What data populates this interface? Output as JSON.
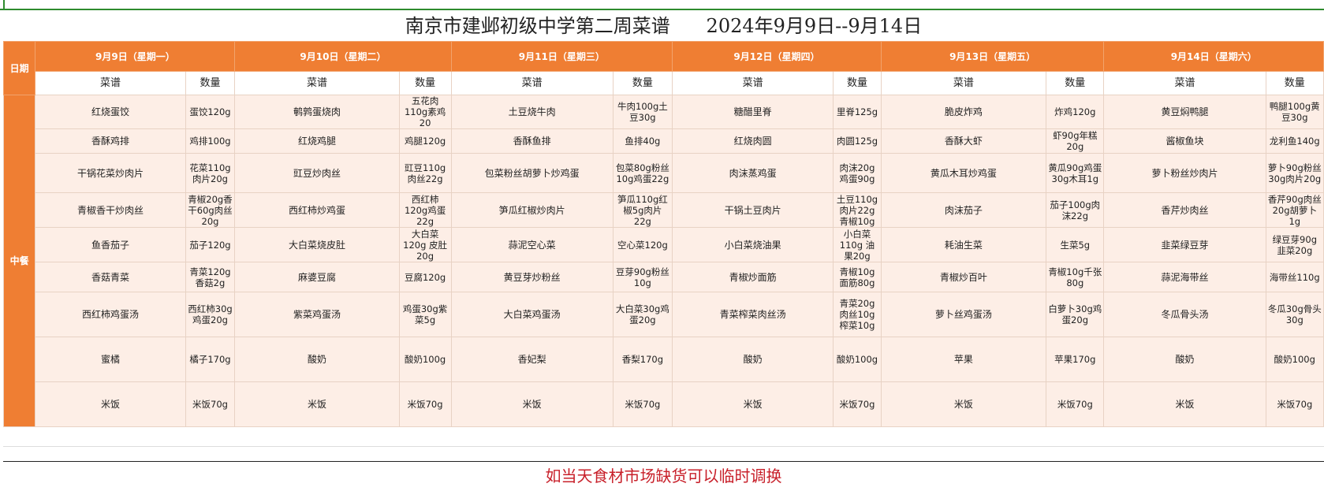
{
  "title": "南京市建邺初级中学第二周菜谱      2024年9月9日--9月14日",
  "row_label_date": "日期",
  "row_label_lunch": "中餐",
  "col_dish": "菜谱",
  "col_qty": "数量",
  "days": [
    "9月9日（星期一）",
    "9月10日（星期二）",
    "9月11日（星期三）",
    "9月12日（星期四）",
    "9月13日（星期五）",
    "9月14日（星期六）"
  ],
  "rows": [
    [
      [
        "红烧蛋饺",
        "蛋饺120g"
      ],
      [
        "鹌鹑蛋烧肉",
        "五花肉110g素鸡20"
      ],
      [
        "土豆烧牛肉",
        "牛肉100g土豆30g"
      ],
      [
        "糖醋里脊",
        "里脊125g"
      ],
      [
        "脆皮炸鸡",
        "炸鸡120g"
      ],
      [
        "黄豆焖鸭腿",
        "鸭腿100g黄豆30g"
      ]
    ],
    [
      [
        "香酥鸡排",
        "鸡排100g"
      ],
      [
        "红烧鸡腿",
        "鸡腿120g"
      ],
      [
        "香酥鱼排",
        "鱼排40g"
      ],
      [
        "红烧肉圆",
        "肉圆125g"
      ],
      [
        "香酥大虾",
        "虾90g年糕20g"
      ],
      [
        "酱椒鱼块",
        "龙利鱼140g"
      ]
    ],
    [
      [
        "干锅花菜炒肉片",
        "花菜110g肉片20g"
      ],
      [
        "豇豆炒肉丝",
        "豇豆110g肉丝22g"
      ],
      [
        "包菜粉丝胡萝卜炒鸡蛋",
        "包菜80g粉丝10g鸡蛋22g"
      ],
      [
        "肉沫蒸鸡蛋",
        "肉沫20g鸡蛋90g"
      ],
      [
        "黄瓜木耳炒鸡蛋",
        "黄瓜90g鸡蛋30g木耳1g"
      ],
      [
        "萝卜粉丝炒肉片",
        "萝卜90g粉丝30g肉片20g"
      ]
    ],
    [
      [
        "青椒香干炒肉丝",
        "青椒20g香干60g肉丝20g"
      ],
      [
        "西红柿炒鸡蛋",
        "西红柿120g鸡蛋22g"
      ],
      [
        "笋瓜红椒炒肉片",
        "笋瓜110g红椒5g肉片22g"
      ],
      [
        "干锅土豆肉片",
        "土豆110g肉片22g青椒10g"
      ],
      [
        "肉沫茄子",
        "茄子100g肉沫22g"
      ],
      [
        "香芹炒肉丝",
        "香芹90g肉丝20g胡萝卜1g"
      ]
    ],
    [
      [
        "鱼香茄子",
        "茄子120g"
      ],
      [
        "大白菜烧皮肚",
        "大白菜120g  皮肚20g"
      ],
      [
        "蒜泥空心菜",
        "空心菜120g"
      ],
      [
        "小白菜烧油果",
        "小白菜110g  油果20g"
      ],
      [
        "耗油生菜",
        "生菜5g"
      ],
      [
        "韭菜绿豆芽",
        "绿豆芽90g 韭菜20g"
      ]
    ],
    [
      [
        "香菇青菜",
        "青菜120g香菇2g"
      ],
      [
        "麻婆豆腐",
        "豆腐120g"
      ],
      [
        "黄豆芽炒粉丝",
        "豆芽90g粉丝10g"
      ],
      [
        "青椒炒面筋",
        "青椒10g面筋80g"
      ],
      [
        "青椒炒百叶",
        "青椒10g千张80g"
      ],
      [
        "蒜泥海带丝",
        "海带丝110g"
      ]
    ],
    [
      [
        "西红柿鸡蛋汤",
        "西红柿30g鸡蛋20g"
      ],
      [
        "紫菜鸡蛋汤",
        "鸡蛋30g紫菜5g"
      ],
      [
        "大白菜鸡蛋汤",
        "大白菜30g鸡蛋20g"
      ],
      [
        "青菜榨菜肉丝汤",
        "青菜20g肉丝10g榨菜10g"
      ],
      [
        "萝卜丝鸡蛋汤",
        "白萝卜30g鸡蛋20g"
      ],
      [
        "冬瓜骨头汤",
        "冬瓜30g骨头30g"
      ]
    ],
    [
      [
        "蜜橘",
        "橘子170g"
      ],
      [
        "酸奶",
        "酸奶100g"
      ],
      [
        "香妃梨",
        "香梨170g"
      ],
      [
        "酸奶",
        "酸奶100g"
      ],
      [
        "苹果",
        "苹果170g"
      ],
      [
        "酸奶",
        "酸奶100g"
      ]
    ],
    [
      [
        "米饭",
        "米饭70g"
      ],
      [
        "米饭",
        "米饭70g"
      ],
      [
        "米饭",
        "米饭70g"
      ],
      [
        "米饭",
        "米饭70g"
      ],
      [
        "米饭",
        "米饭70g"
      ],
      [
        "米饭",
        "米饭70g"
      ]
    ]
  ],
  "footnote": "如当天食材市场缺货可以临时调换",
  "colors": {
    "header": "#ef7e33",
    "cell": "#fdeee6",
    "note": "#c8202a"
  }
}
